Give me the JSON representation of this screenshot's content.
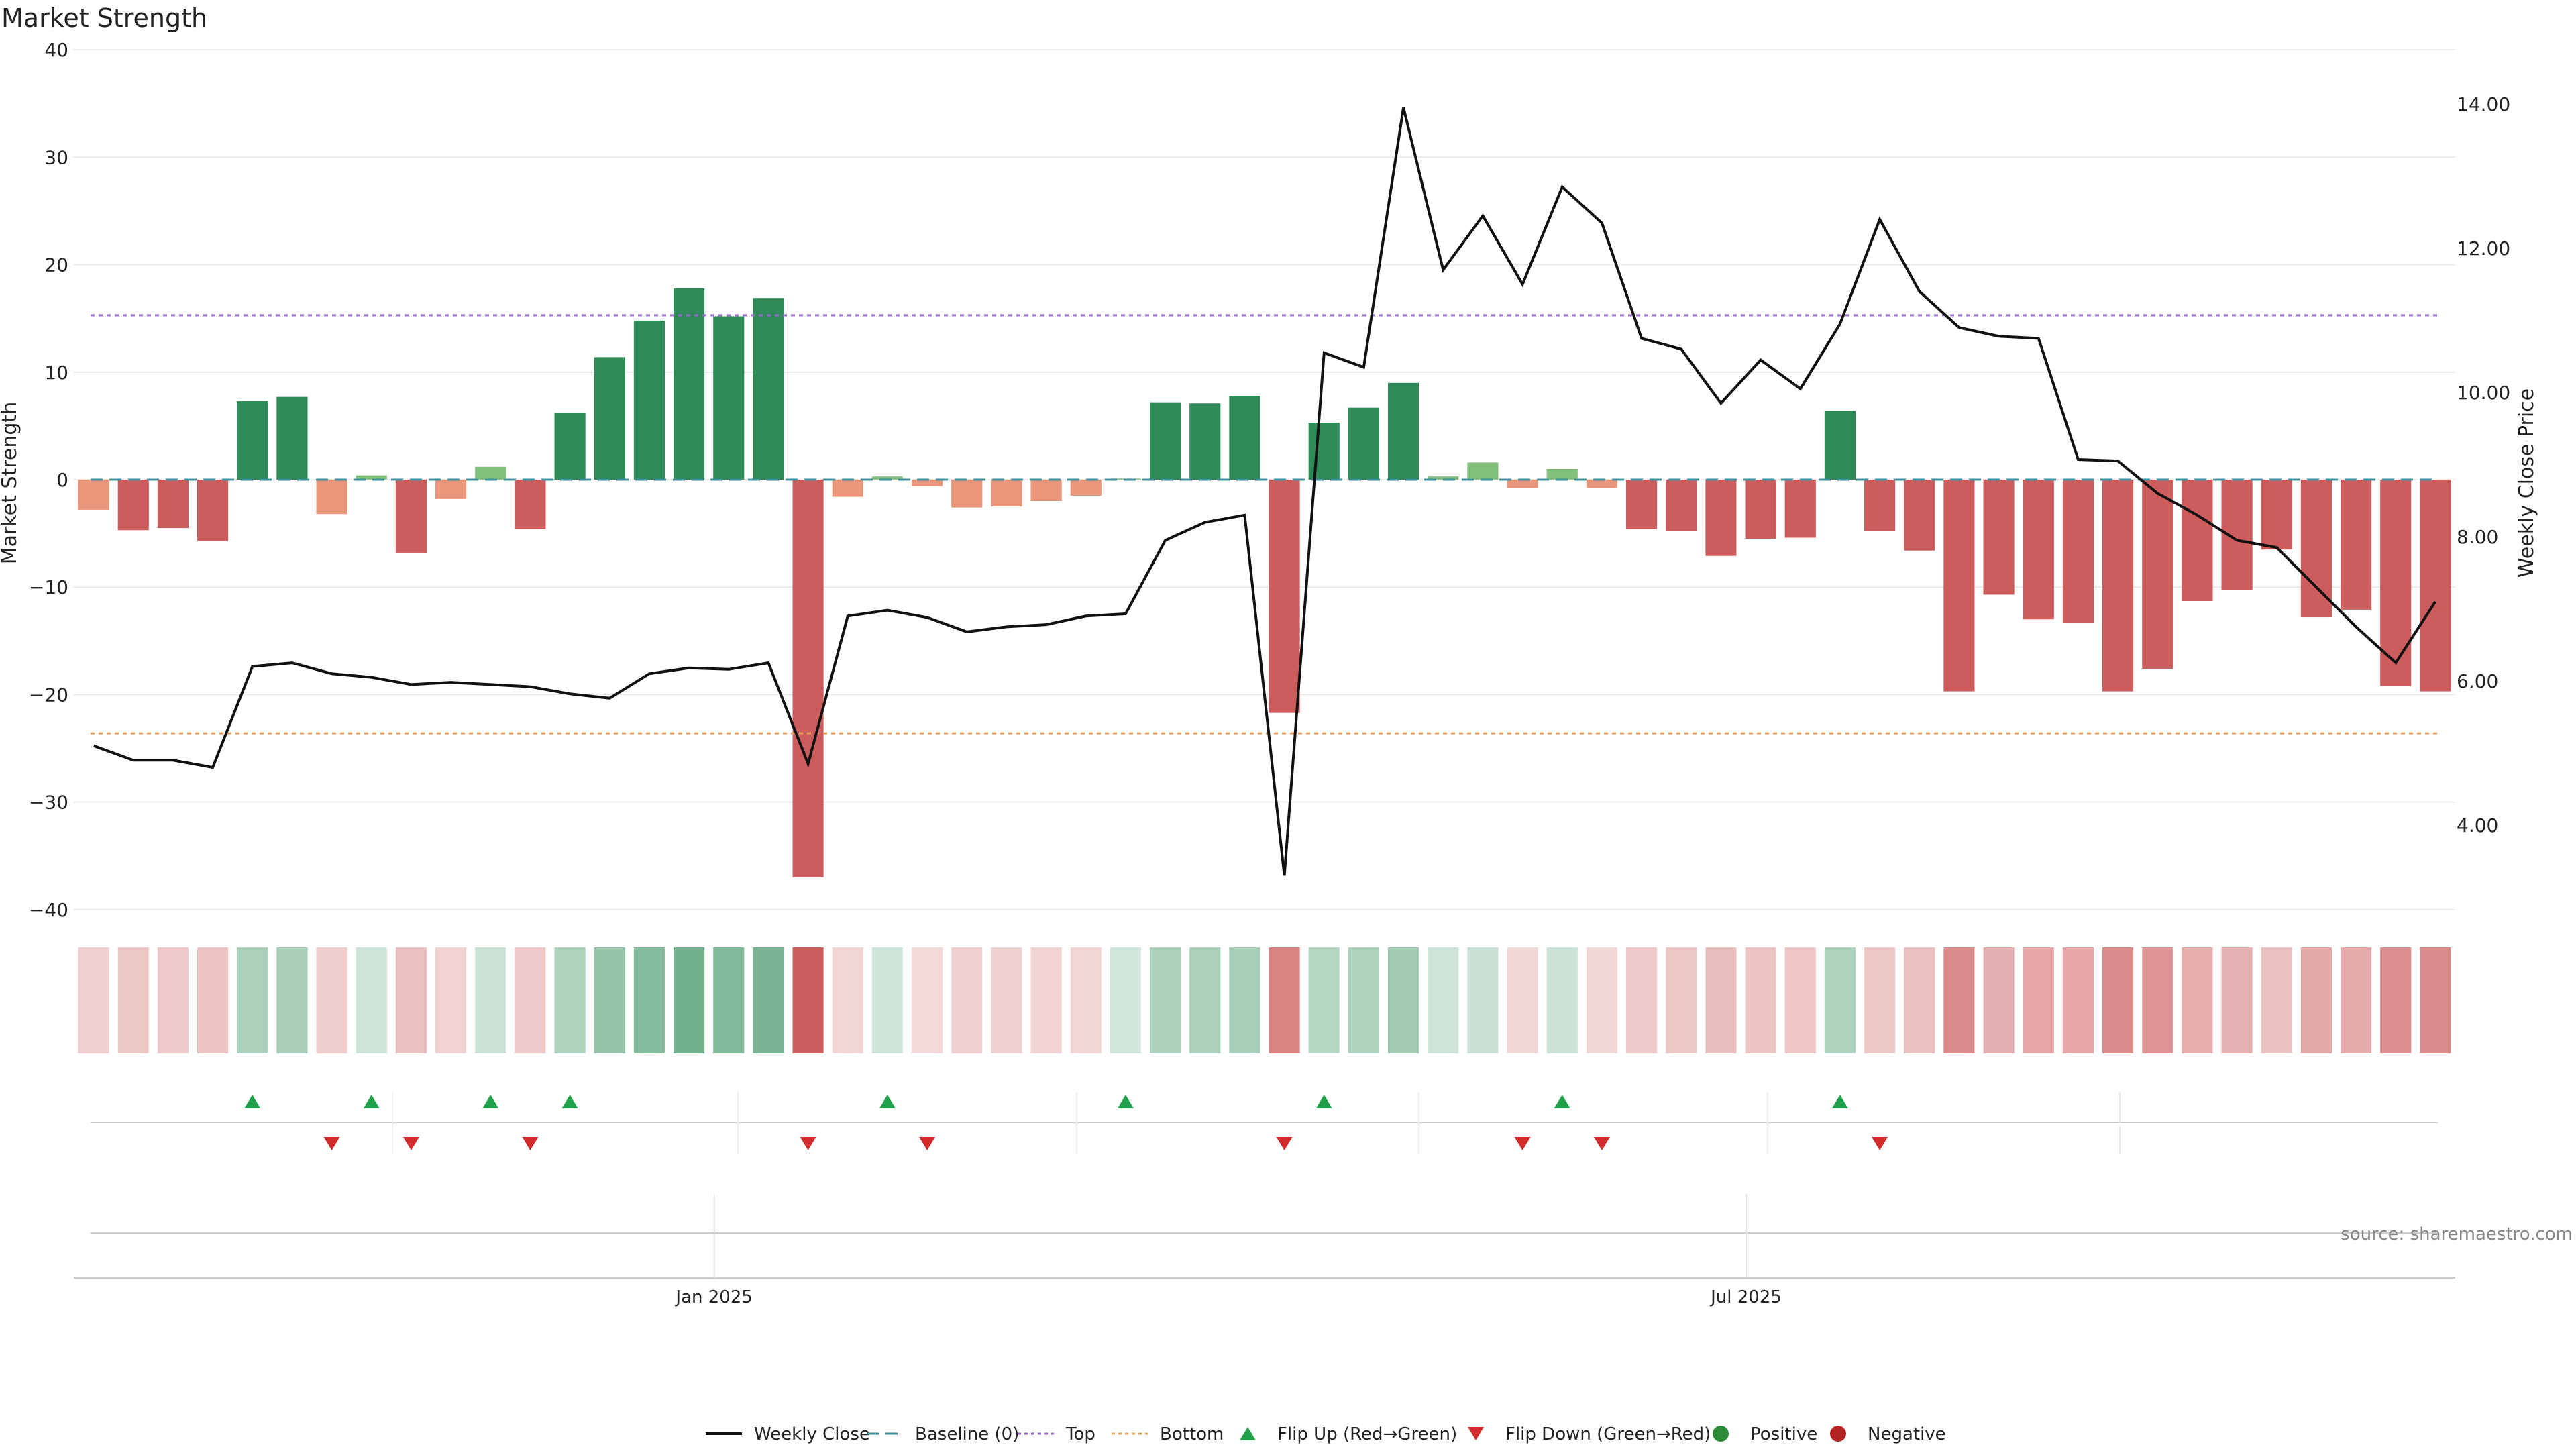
{
  "chart_data": {
    "type": "bar",
    "title": "Market Strength",
    "ylabel": "Market Strength",
    "ylabel_right": "Weekly Close Price",
    "ylim": [
      -40,
      40
    ],
    "ylim_right": [
      2.4,
      14.4
    ],
    "yticks": [
      "40",
      "30",
      "20",
      "10",
      "0",
      "−10",
      "−20",
      "−30",
      "−40"
    ],
    "yticks_right": [
      "4.00",
      "6.00",
      "8.00",
      "10.00",
      "12.00",
      "14.00"
    ],
    "x_tick_labels": [
      "Jan 2025",
      "Jul 2025"
    ],
    "x_tick_index": [
      16,
      42
    ],
    "x_start": "2024-09-09",
    "x_step_days": 7,
    "grid": true,
    "legend_position": "bottom-center",
    "source": "source: sharemaestro.com",
    "top_line": 15.3,
    "bottom_line": -23.6,
    "baseline": 0,
    "strength": [
      -2.8,
      -4.7,
      -4.5,
      -5.7,
      7.3,
      7.7,
      -3.2,
      0.4,
      -6.8,
      -1.8,
      1.2,
      -4.6,
      6.2,
      11.4,
      14.8,
      17.8,
      15.2,
      16.9,
      -37,
      -1.6,
      0.3,
      -0.6,
      -2.6,
      -2.5,
      -2,
      -1.5,
      0.1,
      7.2,
      7.1,
      7.8,
      -21.7,
      5.3,
      6.7,
      9,
      0.3,
      1.6,
      -0.8,
      1,
      -0.8,
      -4.6,
      -4.8,
      -7.1,
      -5.5,
      -5.4,
      6.4,
      -4.8,
      -6.6,
      -19.7,
      -10.7,
      -13,
      -13.3,
      -19.7,
      -17.6,
      -11.3,
      -10.3,
      -6.5,
      -12.8,
      -12.1,
      -19.2,
      -19.7
    ],
    "close": [
      5.1,
      4.9,
      4.9,
      4.8,
      6.2,
      6.25,
      6.1,
      6.05,
      5.95,
      5.98,
      5.95,
      5.92,
      5.82,
      5.76,
      6.1,
      6.18,
      6.16,
      6.25,
      4.85,
      6.9,
      6.98,
      6.88,
      6.68,
      6.75,
      6.78,
      6.9,
      6.93,
      7.95,
      8.2,
      8.3,
      3.3,
      10.55,
      10.35,
      13.95,
      11.7,
      12.45,
      11.5,
      12.85,
      12.35,
      10.75,
      10.6,
      9.85,
      10.45,
      10.05,
      10.95,
      12.4,
      11.4,
      10.9,
      10.78,
      10.75,
      9.07,
      9.05,
      8.6,
      8.3,
      7.95,
      7.85,
      7.3,
      6.75,
      6.25,
      7.1
    ],
    "flip_up_index": [
      4,
      7,
      10,
      12,
      20,
      26,
      31,
      37,
      44
    ],
    "flip_down_index": [
      6,
      8,
      11,
      18,
      21,
      30,
      36,
      38,
      45
    ],
    "series": [
      {
        "name": "Weekly Close",
        "color": "#111111"
      },
      {
        "name": "Baseline (0)",
        "color": "#3f8f9a"
      },
      {
        "name": "Top",
        "color": "#9b6cc9"
      },
      {
        "name": "Bottom",
        "color": "#e7a15c"
      },
      {
        "name": "Flip Up (Red→Green)",
        "color": "#21a04a"
      },
      {
        "name": "Flip Down (Green→Red)",
        "color": "#d22b2b"
      },
      {
        "name": "Positive",
        "color": "#2e8b3a"
      },
      {
        "name": "Negative",
        "color": "#b22222"
      }
    ],
    "colors": {
      "pos_strong": "#2e8b57",
      "pos_light": "#82c07c",
      "neg_strong": "#cd5c5c",
      "neg_light": "#e9967a",
      "grid": "#e6e6e6"
    }
  }
}
